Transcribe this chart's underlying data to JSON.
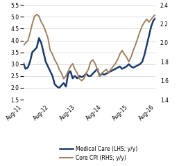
{
  "title": "",
  "lhs_label": "Medical Care (LHS; y/y)",
  "rhs_label": "Core CPI (RHS; y/y)",
  "lhs_color": "#1a3a6b",
  "rhs_color": "#a08060",
  "lhs_ylim": [
    1.5,
    5.5
  ],
  "rhs_ylim": [
    1.4,
    2.4
  ],
  "lhs_yticks": [
    1.5,
    2.0,
    2.5,
    3.0,
    3.5,
    4.0,
    4.5,
    5.0,
    5.5
  ],
  "rhs_yticks": [
    1.4,
    1.6,
    1.8,
    2.0,
    2.2,
    2.4
  ],
  "xtick_labels": [
    "Aug-11",
    "Aug-12",
    "Aug-13",
    "Aug-14",
    "Aug-15",
    "Aug-16"
  ],
  "background_color": "#ffffff",
  "medical_care": [
    3.05,
    2.8,
    2.85,
    3.1,
    3.5,
    3.6,
    3.7,
    4.1,
    3.9,
    3.5,
    3.1,
    2.9,
    2.7,
    2.5,
    2.15,
    2.05,
    2.0,
    2.1,
    2.2,
    2.05,
    2.6,
    2.7,
    2.4,
    2.5,
    2.4,
    2.5,
    2.45,
    2.5,
    2.6,
    2.5,
    2.5,
    2.6,
    2.7,
    2.8,
    2.5,
    2.6,
    2.55,
    2.6,
    2.65,
    2.7,
    2.75,
    2.8,
    2.85,
    2.9,
    2.8,
    2.85,
    2.9,
    3.0,
    2.9,
    2.85,
    2.9,
    2.95,
    3.0,
    3.1,
    3.4,
    3.8,
    4.2,
    4.6,
    4.85,
    4.95
  ],
  "core_cpi": [
    1.97,
    2.0,
    2.02,
    2.1,
    2.2,
    2.28,
    2.3,
    2.28,
    2.22,
    2.18,
    2.12,
    2.05,
    1.92,
    1.88,
    1.82,
    1.78,
    1.72,
    1.68,
    1.62,
    1.65,
    1.7,
    1.75,
    1.78,
    1.72,
    1.68,
    1.62,
    1.6,
    1.62,
    1.68,
    1.72,
    1.8,
    1.82,
    1.78,
    1.72,
    1.65,
    1.68,
    1.7,
    1.72,
    1.68,
    1.72,
    1.75,
    1.78,
    1.82,
    1.88,
    1.92,
    1.88,
    1.85,
    1.8,
    1.85,
    1.92,
    1.98,
    2.05,
    2.12,
    2.18,
    2.22,
    2.25,
    2.22,
    2.25,
    2.28,
    2.3
  ],
  "lhs_linewidth": 1.8,
  "rhs_linewidth": 1.4
}
